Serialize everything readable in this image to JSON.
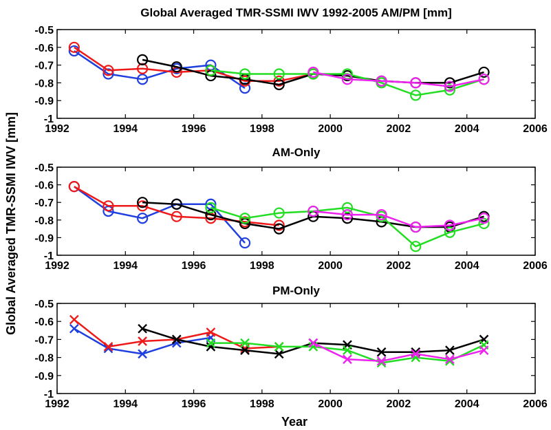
{
  "figure": {
    "ylabel": "Global Averaged TMR-SSMI  IWV [mm]",
    "xlabel": "Year"
  },
  "series_colors": {
    "blue": "#1f3fdf",
    "red": "#ee1a1a",
    "black": "#000000",
    "green": "#22dd22",
    "magenta": "#ee22ee"
  },
  "chart_data": [
    {
      "type": "line",
      "title": "Global Averaged TMR-SSMI  IWV 1992-2005 AM/PM [mm]",
      "marker": "circle",
      "xlim": [
        1992,
        2006
      ],
      "ylim": [
        -1,
        -0.5
      ],
      "xticks": [
        "1992",
        "1994",
        "1996",
        "1998",
        "2000",
        "2002",
        "2004",
        "2006"
      ],
      "yticks": [
        "-0.5",
        "-0.6",
        "-0.7",
        "-0.8",
        "-0.9",
        "-1"
      ],
      "grid": false,
      "series": [
        {
          "color": "blue",
          "x": [
            1992.5,
            1993.5,
            1994.5,
            1995.5,
            1996.5,
            1997.5
          ],
          "y": [
            -0.62,
            -0.75,
            -0.78,
            -0.72,
            -0.7,
            -0.83
          ]
        },
        {
          "color": "red",
          "x": [
            1992.5,
            1993.5,
            1994.5,
            1995.5,
            1996.5,
            1997.5,
            1998.5,
            1999.5
          ],
          "y": [
            -0.6,
            -0.73,
            -0.72,
            -0.74,
            -0.73,
            -0.79,
            -0.79,
            -0.75
          ]
        },
        {
          "color": "black",
          "x": [
            1994.5,
            1995.5,
            1996.5,
            1997.5,
            1998.5,
            1999.5,
            2000.5,
            2001.5,
            2002.5,
            2003.5,
            2004.5
          ],
          "y": [
            -0.67,
            -0.71,
            -0.76,
            -0.78,
            -0.81,
            -0.75,
            -0.76,
            -0.79,
            -0.8,
            -0.8,
            -0.74
          ]
        },
        {
          "color": "green",
          "x": [
            1996.5,
            1997.5,
            1998.5,
            1999.5,
            2000.5,
            2001.5,
            2002.5,
            2003.5,
            2004.5
          ],
          "y": [
            -0.73,
            -0.75,
            -0.75,
            -0.75,
            -0.75,
            -0.8,
            -0.87,
            -0.84,
            -0.78
          ]
        },
        {
          "color": "magenta",
          "x": [
            1999.5,
            2000.5,
            2001.5,
            2002.5,
            2003.5,
            2004.5
          ],
          "y": [
            -0.74,
            -0.78,
            -0.79,
            -0.8,
            -0.82,
            -0.78
          ]
        }
      ]
    },
    {
      "type": "line",
      "title": "AM-Only",
      "marker": "circle",
      "xlim": [
        1992,
        2006
      ],
      "ylim": [
        -1,
        -0.5
      ],
      "xticks": [
        "1992",
        "1994",
        "1996",
        "1998",
        "2000",
        "2002",
        "2004",
        "2006"
      ],
      "yticks": [
        "-0.5",
        "-0.6",
        "-0.7",
        "-0.8",
        "-0.9",
        "-1"
      ],
      "grid": false,
      "series": [
        {
          "color": "blue",
          "x": [
            1992.5,
            1993.5,
            1994.5,
            1995.5,
            1996.5,
            1997.5
          ],
          "y": [
            -0.61,
            -0.75,
            -0.79,
            -0.71,
            -0.71,
            -0.93
          ]
        },
        {
          "color": "red",
          "x": [
            1992.5,
            1993.5,
            1994.5,
            1995.5,
            1996.5,
            1997.5,
            1998.5
          ],
          "y": [
            -0.61,
            -0.72,
            -0.72,
            -0.78,
            -0.79,
            -0.81,
            -0.83
          ]
        },
        {
          "color": "black",
          "x": [
            1994.5,
            1995.5,
            1996.5,
            1997.5,
            1998.5,
            1999.5,
            2000.5,
            2001.5,
            2002.5,
            2003.5,
            2004.5
          ],
          "y": [
            -0.7,
            -0.71,
            -0.77,
            -0.82,
            -0.85,
            -0.78,
            -0.79,
            -0.81,
            -0.84,
            -0.84,
            -0.78
          ]
        },
        {
          "color": "green",
          "x": [
            1996.5,
            1997.5,
            1998.5,
            1999.5,
            2000.5,
            2001.5,
            2002.5,
            2003.5,
            2004.5
          ],
          "y": [
            -0.73,
            -0.79,
            -0.76,
            -0.75,
            -0.73,
            -0.78,
            -0.95,
            -0.87,
            -0.82
          ]
        },
        {
          "color": "magenta",
          "x": [
            1999.5,
            2000.5,
            2001.5,
            2002.5,
            2003.5,
            2004.5
          ],
          "y": [
            -0.75,
            -0.77,
            -0.77,
            -0.84,
            -0.83,
            -0.79
          ]
        }
      ]
    },
    {
      "type": "line",
      "title": "PM-Only",
      "marker": "x",
      "xlim": [
        1992,
        2006
      ],
      "ylim": [
        -1,
        -0.5
      ],
      "xticks": [
        "1992",
        "1994",
        "1996",
        "1998",
        "2000",
        "2002",
        "2004",
        "2006"
      ],
      "yticks": [
        "-0.5",
        "-0.6",
        "-0.7",
        "-0.8",
        "-0.9",
        "-1"
      ],
      "grid": false,
      "series": [
        {
          "color": "blue",
          "x": [
            1992.5,
            1993.5,
            1994.5,
            1995.5,
            1996.5
          ],
          "y": [
            -0.64,
            -0.75,
            -0.78,
            -0.72,
            -0.69
          ]
        },
        {
          "color": "red",
          "x": [
            1992.5,
            1993.5,
            1994.5,
            1995.5,
            1996.5,
            1997.5,
            1998.5
          ],
          "y": [
            -0.59,
            -0.74,
            -0.71,
            -0.7,
            -0.66,
            -0.75,
            -0.74
          ]
        },
        {
          "color": "black",
          "x": [
            1994.5,
            1995.5,
            1996.5,
            1997.5,
            1998.5,
            1999.5,
            2000.5,
            2001.5,
            2002.5,
            2003.5,
            2004.5
          ],
          "y": [
            -0.64,
            -0.7,
            -0.74,
            -0.76,
            -0.78,
            -0.72,
            -0.73,
            -0.77,
            -0.77,
            -0.76,
            -0.7
          ]
        },
        {
          "color": "green",
          "x": [
            1996.5,
            1997.5,
            1998.5,
            1999.5,
            2000.5,
            2001.5,
            2002.5,
            2003.5,
            2004.5
          ],
          "y": [
            -0.72,
            -0.72,
            -0.74,
            -0.74,
            -0.76,
            -0.83,
            -0.8,
            -0.82,
            -0.73
          ]
        },
        {
          "color": "magenta",
          "x": [
            1999.5,
            2000.5,
            2001.5,
            2002.5,
            2003.5,
            2004.5
          ],
          "y": [
            -0.72,
            -0.81,
            -0.82,
            -0.78,
            -0.81,
            -0.76
          ]
        }
      ]
    }
  ]
}
